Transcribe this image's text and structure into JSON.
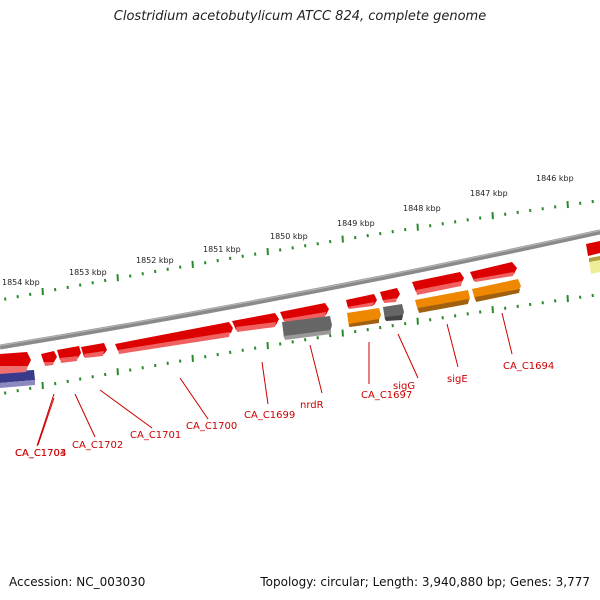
{
  "title": "Clostridium acetobutylicum ATCC 824, complete genome",
  "footer": {
    "accession": "Accession: NC_003030",
    "summary": "Topology: circular; Length: 3,940,880 bp; Genes: 3,777"
  },
  "ruler": {
    "color": "#2a8a2a",
    "labels": [
      "1854 kbp",
      "1853 kbp",
      "1852 kbp",
      "1851 kbp",
      "1850 kbp",
      "1849 kbp",
      "1848 kbp",
      "1847 kbp",
      "1846 kbp"
    ]
  },
  "genes": [
    {
      "label": "CA_C1704",
      "color": "#dd0000"
    },
    {
      "label": "CA_C1703",
      "color": "#dd0000"
    },
    {
      "label": "CA_C1702",
      "color": "#dd0000"
    },
    {
      "label": "CA_C1701",
      "color": "#dd0000"
    },
    {
      "label": "CA_C1700",
      "color": "#dd0000"
    },
    {
      "label": "CA_C1699",
      "color": "#dd0000"
    },
    {
      "label": "nrdR",
      "color": "#ee8800"
    },
    {
      "label": "CA_C1697",
      "color": "#666666"
    },
    {
      "label": "sigG",
      "color": "#ee8800"
    },
    {
      "label": "sigE",
      "color": "#ee8800"
    },
    {
      "label": "CA_C1694",
      "color": "#dd0000"
    }
  ],
  "colors": {
    "cds": "#dd0000",
    "rna": "#ee8800",
    "other": "#666666",
    "blue_feature": "#3a3a8a",
    "yellow_feature": "#eeee88",
    "backbone": "#888888"
  }
}
